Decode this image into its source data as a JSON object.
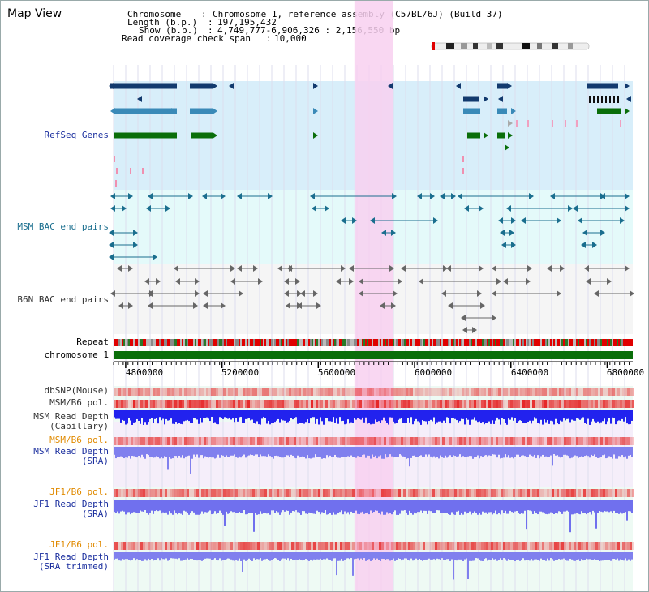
{
  "title": "Map View",
  "info": {
    "chromosome_label": "Chromosome",
    "chromosome_value": "Chromosome 1, reference assembly (C57BL/6J) (Build 37)",
    "length_label": "Length (b.p.)",
    "length_value": "197,195,432",
    "show_label": "Show (b.p.)",
    "show_value": "4,749,777-6,906,326 : 2,156,550 bp",
    "coverage_label": "Read coverage check span",
    "coverage_value": "10,000"
  },
  "tracks": {
    "refseq": "RefSeq Genes",
    "msm_bac": "MSM BAC end pairs",
    "b6n_bac": "B6N BAC end pairs",
    "repeat": "Repeat",
    "chromosome": "chromosome 1",
    "dbsnp": "dbSNP(Mouse)",
    "msm_b6_pol": "MSM/B6 pol.",
    "msm_depth_cap_1": "MSM Read Depth",
    "msm_depth_cap_2": "(Capillary)",
    "msm_b6_pol_2": "MSM/B6 pol.",
    "msm_depth_sra_1": "MSM Read Depth",
    "msm_depth_sra_2": "(SRA)",
    "jf1_b6_pol": "JF1/B6 pol.",
    "jf1_depth_sra_1": "JF1 Read Depth",
    "jf1_depth_sra_2": "(SRA)",
    "jf1_b6_pol_2": "JF1/B6 pol.",
    "jf1_depth_trim_1": "JF1 Read Depth",
    "jf1_depth_trim_2": "(SRA trimmed)"
  },
  "axis": {
    "ticks": [
      {
        "value": 4800000,
        "label": "4800000"
      },
      {
        "value": 5200000,
        "label": "5200000"
      },
      {
        "value": 5600000,
        "label": "5600000"
      },
      {
        "value": 6000000,
        "label": "6000000"
      },
      {
        "value": 6400000,
        "label": "6400000"
      },
      {
        "value": 6800000,
        "label": "6800000"
      }
    ],
    "start": 4749777,
    "end": 6906326
  },
  "highlight": {
    "start": 5750000,
    "end": 5910000
  },
  "colors": {
    "refseq_bg": "#d8eefa",
    "bac_bg": "#e4fafa",
    "b6n_bg": "#f5f5f5",
    "highlight": "#f8d0f0",
    "gene_dark": "#123a6e",
    "gene_mid": "#3a8ab8",
    "gene_green": "#0a6e0a",
    "bac_teal": "#1a6e8e",
    "b6n_grey": "#666666",
    "chromosome": "#0a6e0a",
    "label_blue": "#1a2e9e",
    "label_orange": "#e08a00",
    "label_dark": "#333333"
  }
}
